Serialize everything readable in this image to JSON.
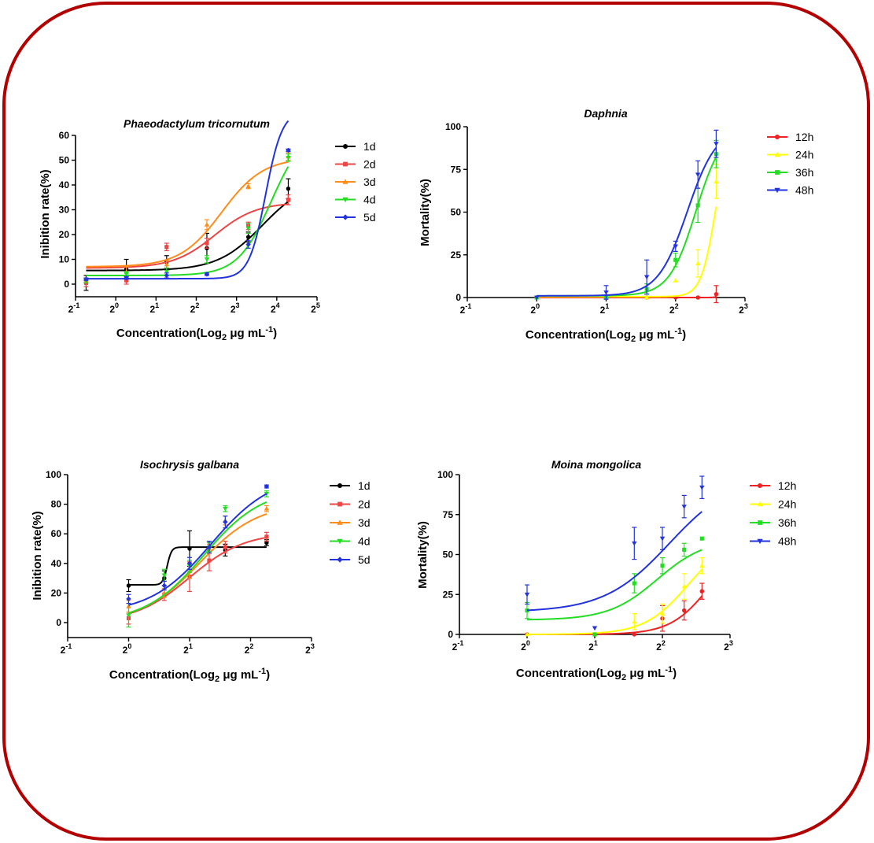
{
  "frame_color": "#b30000",
  "chart_data": [
    {
      "id": "phaeo",
      "type": "line",
      "title": "Phaeodactylum tricornutum",
      "ylabel": "Inibition rate(%)",
      "xlabel": "Concentration(Log",
      "xlabel_sub": "2",
      "xlabel_unit": " μg mL",
      "xlabel_sup": "-1",
      "xlabel_close": ")",
      "x_scale": "log2",
      "xlim_exp": [
        -1,
        5
      ],
      "xtick_exps": [
        "-1",
        "0",
        "1",
        "2",
        "3",
        "4",
        "5"
      ],
      "ylim": [
        -5,
        60
      ],
      "yticks": [
        "0",
        "10",
        "20",
        "30",
        "40",
        "50",
        "60"
      ],
      "x_points": [
        0.6,
        1.2,
        2.4,
        4.8,
        9.8,
        19.5
      ],
      "series": [
        {
          "name": "1d",
          "color": "#000000",
          "marker": "circle",
          "values": [
            0.5,
            6,
            9,
            14.5,
            19,
            38.5
          ],
          "errors": [
            3,
            4,
            2.5,
            6,
            2,
            4
          ],
          "fit": {
            "bottom": 5.5,
            "top": 42,
            "ec50": 12.5,
            "hill": 2.6
          }
        },
        {
          "name": "2d",
          "color": "#ee4444",
          "marker": "square",
          "values": [
            0.5,
            1.5,
            15,
            16.5,
            23.5,
            34
          ],
          "errors": [
            1.5,
            1.5,
            1.5,
            2,
            1.5,
            2
          ],
          "fit": {
            "bottom": 6.5,
            "top": 33,
            "ec50": 5.5,
            "hill": 2.8
          }
        },
        {
          "name": "3d",
          "color": "#ff8c1a",
          "marker": "triangle",
          "values": [
            1.5,
            5,
            8,
            24,
            39.5,
            51.5
          ],
          "errors": [
            1,
            2,
            1.5,
            2,
            1,
            1.5
          ],
          "fit": {
            "bottom": 7,
            "top": 51,
            "ec50": 6.2,
            "hill": 2.8
          }
        },
        {
          "name": "4d",
          "color": "#22dd22",
          "marker": "triangle-down",
          "values": [
            1.5,
            4,
            5,
            10,
            22.5,
            51
          ],
          "errors": [
            1,
            1,
            1.5,
            1.5,
            2,
            1.5
          ],
          "fit": {
            "bottom": 3.5,
            "top": 63,
            "ec50": 14.5,
            "hill": 3.5
          }
        },
        {
          "name": "5d",
          "color": "#2233dd",
          "marker": "diamond",
          "values": [
            2,
            2.5,
            3.5,
            4,
            16,
            54
          ],
          "errors": [
            0.5,
            0.5,
            1,
            0.5,
            1.5,
            0.5
          ],
          "fit": {
            "bottom": 2.2,
            "top": 70,
            "ec50": 13.2,
            "hill": 7
          }
        }
      ]
    },
    {
      "id": "daphnia",
      "type": "line",
      "title": "Daphnia",
      "ylabel": "Mortality(%)",
      "xlabel": "Concentration(Log",
      "xlabel_sub": "2",
      "xlabel_unit": " μg mL",
      "xlabel_sup": "-1",
      "xlabel_close": ")",
      "x_scale": "log2",
      "xlim_exp": [
        -1,
        3
      ],
      "xtick_exps": [
        "-1",
        "0",
        "1",
        "2",
        "3"
      ],
      "ylim": [
        0,
        100
      ],
      "yticks": [
        "0",
        "25",
        "50",
        "75",
        "100"
      ],
      "x_points": [
        1,
        2,
        3,
        4,
        5,
        6
      ],
      "series": [
        {
          "name": "12h",
          "color": "#ee2222",
          "marker": "circle",
          "values": [
            0,
            0,
            0,
            0,
            0,
            2
          ],
          "errors": [
            0,
            0,
            0,
            0,
            0,
            5
          ],
          "fit": {
            "bottom": 0,
            "top": 40,
            "ec50": 6.6,
            "hill": 45
          }
        },
        {
          "name": "24h",
          "color": "#ffff00",
          "marker": "triangle",
          "values": [
            0,
            0,
            0,
            10,
            20,
            68
          ],
          "errors": [
            0,
            0,
            0,
            0,
            8,
            10
          ],
          "fit": {
            "bottom": 0.5,
            "top": 100,
            "ec50": 5.95,
            "hill": 14
          }
        },
        {
          "name": "36h",
          "color": "#22dd22",
          "marker": "square",
          "values": [
            0,
            0,
            5,
            22,
            54,
            84
          ],
          "errors": [
            0,
            0,
            3,
            4,
            10,
            8
          ],
          "fit": {
            "bottom": 1,
            "top": 100,
            "ec50": 4.9,
            "hill": 7.5
          }
        },
        {
          "name": "48h",
          "color": "#2233dd",
          "marker": "triangle-down",
          "values": [
            0,
            3,
            12,
            30,
            72,
            90
          ],
          "errors": [
            0,
            4,
            10,
            3,
            8,
            8
          ],
          "fit": {
            "bottom": 1,
            "top": 100,
            "ec50": 4.5,
            "hill": 6.8
          }
        }
      ]
    },
    {
      "id": "iso",
      "type": "line",
      "title": "Isochrysis galbana",
      "ylabel": "Inibition rate(%)",
      "xlabel": "Concentration(Log",
      "xlabel_sub": "2",
      "xlabel_unit": " μg mL",
      "xlabel_sup": "-1",
      "xlabel_close": ")",
      "x_scale": "log2",
      "xlim_exp": [
        -1,
        3
      ],
      "xtick_exps": [
        "-1",
        "0",
        "1",
        "2",
        "3"
      ],
      "ylim": [
        -10,
        100
      ],
      "yticks": [
        "0",
        "20",
        "40",
        "60",
        "80",
        "100"
      ],
      "x_points": [
        1,
        1.5,
        2,
        2.5,
        3,
        4.8
      ],
      "series": [
        {
          "name": "1d",
          "color": "#000000",
          "marker": "circle",
          "values": [
            25,
            30,
            50,
            51,
            49,
            54
          ],
          "errors": [
            4,
            5,
            12,
            4,
            4,
            2
          ],
          "fit": {
            "bottom": 25.5,
            "top": 51,
            "ec50": 1.55,
            "hill": 40
          }
        },
        {
          "name": "2d",
          "color": "#ee4444",
          "marker": "square",
          "values": [
            3,
            19,
            31,
            42,
            51,
            58
          ],
          "errors": [
            4,
            4,
            10,
            7,
            4,
            3
          ],
          "fit": {
            "bottom": 0,
            "top": 61,
            "ec50": 2.0,
            "hill": 3.2
          }
        },
        {
          "name": "3d",
          "color": "#ff8c1a",
          "marker": "triangle",
          "values": [
            11,
            20,
            35,
            50,
            69,
            77
          ],
          "errors": [
            4,
            3,
            5,
            3,
            3,
            2
          ],
          "fit": {
            "bottom": 0,
            "top": 81,
            "ec50": 2.25,
            "hill": 3.0
          }
        },
        {
          "name": "4d",
          "color": "#22dd22",
          "marker": "triangle-down",
          "values": [
            5,
            32,
            38,
            51,
            77,
            87
          ],
          "errors": [
            8,
            4,
            4,
            3,
            2,
            2
          ],
          "fit": {
            "bottom": 0,
            "top": 91,
            "ec50": 2.35,
            "hill": 3.0
          }
        },
        {
          "name": "5d",
          "color": "#2233dd",
          "marker": "diamond",
          "values": [
            16,
            25,
            40,
            51,
            68,
            92
          ],
          "errors": [
            3,
            3,
            4,
            4,
            4,
            1
          ],
          "fit": {
            "bottom": 6,
            "top": 100,
            "ec50": 2.55,
            "hill": 2.9
          }
        }
      ]
    },
    {
      "id": "moina",
      "type": "line",
      "title": "Moina mongolica",
      "ylabel": "Mortality(%)",
      "xlabel": "Concentration(Log",
      "xlabel_sub": "2",
      "xlabel_unit": " μg mL",
      "xlabel_sup": "-1",
      "xlabel_close": ")",
      "x_scale": "log2",
      "xlim_exp": [
        -1,
        3
      ],
      "xtick_exps": [
        "-1",
        "0",
        "1",
        "2",
        "3"
      ],
      "ylim": [
        0,
        100
      ],
      "yticks": [
        "0",
        "25",
        "50",
        "75",
        "100"
      ],
      "x_points": [
        1,
        2,
        3,
        4,
        5,
        6
      ],
      "series": [
        {
          "name": "12h",
          "color": "#ee2222",
          "marker": "circle",
          "values": [
            0,
            0,
            0,
            10,
            15,
            27
          ],
          "errors": [
            0,
            0,
            0,
            8,
            6,
            5
          ],
          "fit": {
            "bottom": 0,
            "top": 60,
            "ec50": 6.5,
            "hill": 5
          }
        },
        {
          "name": "24h",
          "color": "#ffff00",
          "marker": "triangle",
          "values": [
            0,
            0,
            8,
            13,
            30,
            43
          ],
          "errors": [
            0,
            0,
            5,
            6,
            8,
            5
          ],
          "fit": {
            "bottom": 0,
            "top": 62,
            "ec50": 5.2,
            "hill": 4.5
          }
        },
        {
          "name": "36h",
          "color": "#22dd22",
          "marker": "square",
          "values": [
            15,
            0,
            32,
            43,
            53,
            60
          ],
          "errors": [
            5,
            0,
            6,
            5,
            4,
            0
          ],
          "fit": {
            "bottom": 9,
            "top": 60,
            "ec50": 3.8,
            "hill": 4
          }
        },
        {
          "name": "48h",
          "color": "#2233dd",
          "marker": "triangle-down",
          "values": [
            25,
            4,
            57,
            60,
            80,
            92
          ],
          "errors": [
            6,
            0,
            10,
            7,
            7,
            7
          ],
          "fit": {
            "bottom": 14,
            "top": 100,
            "ec50": 4.3,
            "hill": 3
          }
        }
      ]
    }
  ]
}
